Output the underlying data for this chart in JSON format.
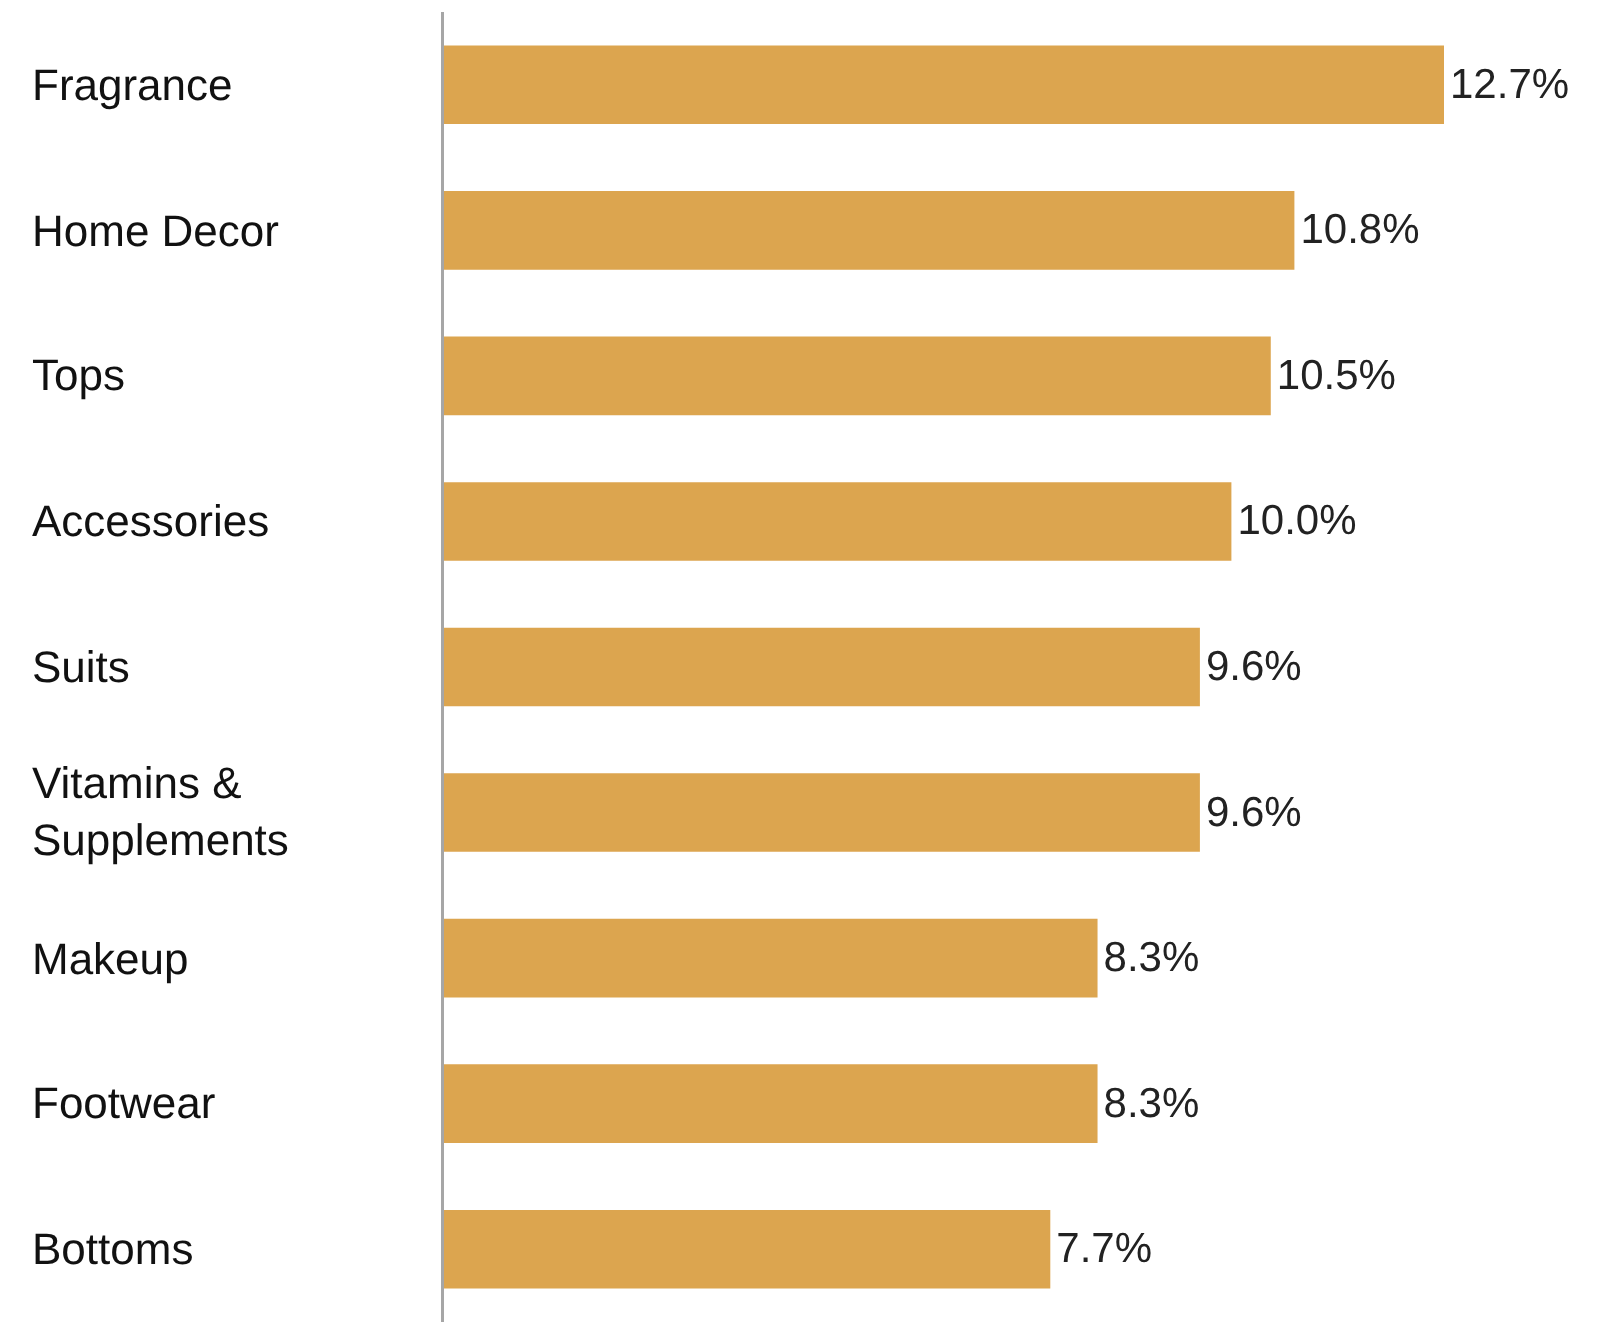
{
  "chart_data": {
    "type": "bar",
    "orientation": "horizontal",
    "categories": [
      "Fragrance",
      "Home Decor",
      "Tops",
      "Accessories",
      "Suits",
      "Vitamins & Supplements",
      "Makeup",
      "Footwear",
      "Bottoms"
    ],
    "values": [
      12.7,
      10.8,
      10.5,
      10.0,
      9.6,
      9.6,
      8.3,
      8.3,
      7.7
    ],
    "value_labels": [
      "12.7%",
      "10.8%",
      "10.5%",
      "10.0%",
      "9.6%",
      "9.6%",
      "8.3%",
      "8.3%",
      "7.7%"
    ],
    "color": "#dca54f",
    "legend": false
  }
}
